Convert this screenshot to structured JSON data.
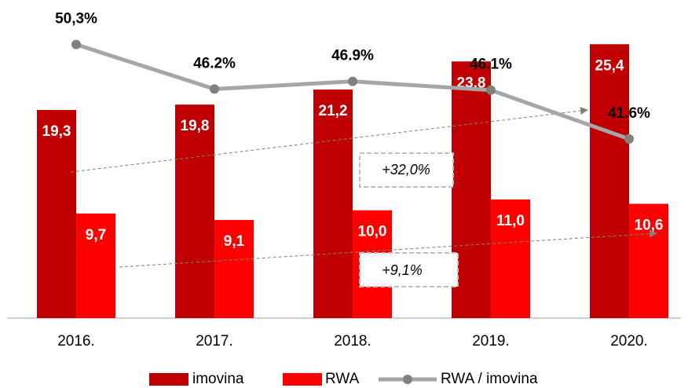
{
  "chart_data": {
    "type": "bar_line",
    "categories": [
      "2016.",
      "2017.",
      "2018.",
      "2019.",
      "2020."
    ],
    "series": [
      {
        "name": "imovina",
        "color": "#c00000",
        "values": [
          19.3,
          19.8,
          21.2,
          23.8,
          25.4
        ],
        "value_labels": [
          "19,3",
          "19,8",
          "21,2",
          "23,8",
          "25,4"
        ]
      },
      {
        "name": "RWA",
        "color": "#ff0000",
        "values": [
          9.7,
          9.1,
          10.0,
          11.0,
          10.6
        ],
        "value_labels": [
          "9,7",
          "9,1",
          "10,0",
          "11,0",
          "10,6"
        ]
      },
      {
        "name": "RWA / imovina",
        "color": "#a6a6a6",
        "type": "line",
        "axis": "y2",
        "values": [
          50.3,
          46.2,
          46.9,
          46.1,
          41.6
        ],
        "value_labels": [
          "50,3%",
          "46.2%",
          "46.9%",
          "46.1%",
          "41.6%"
        ]
      }
    ],
    "ylim": [
      0,
      29.5
    ],
    "y2lim": [
      25.1,
      54.4
    ],
    "annotations": [
      "+32,0%",
      "+9,1%"
    ],
    "legend": "bottom"
  }
}
